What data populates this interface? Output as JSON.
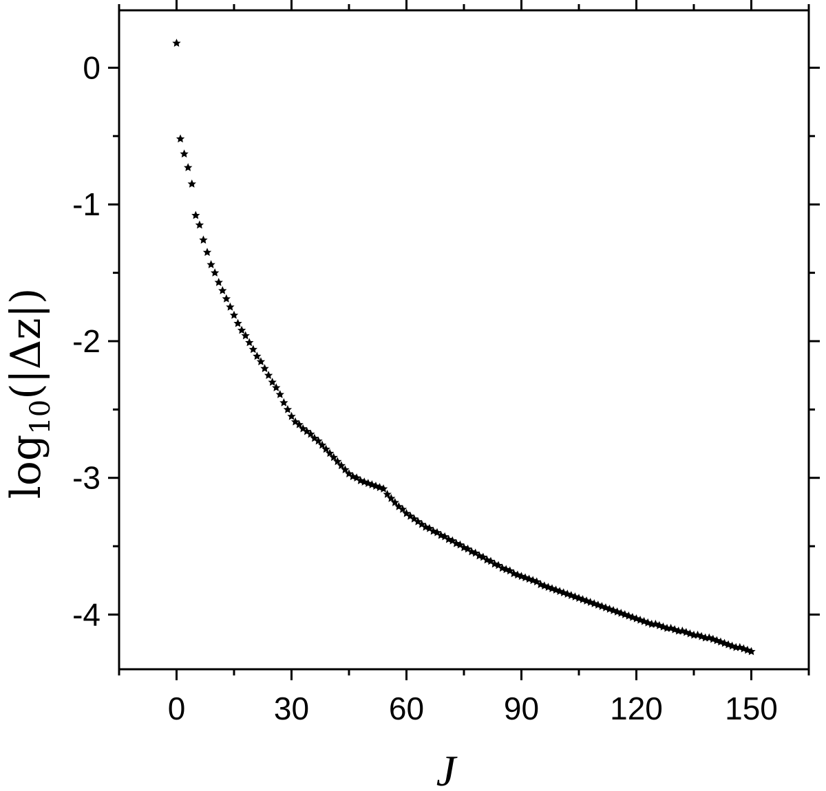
{
  "chart_data": {
    "type": "scatter",
    "xlabel": "J",
    "ylabel": {
      "prefix": "log",
      "subscript": "10",
      "suffix": "(|Δz|)"
    },
    "xlim": [
      -15,
      165
    ],
    "ylim": [
      -4.4,
      0.42
    ],
    "x_ticks": [
      0,
      30,
      60,
      90,
      120,
      150
    ],
    "x_tick_labels": [
      "0",
      "30",
      "60",
      "90",
      "120",
      "150"
    ],
    "y_ticks": [
      0,
      -1,
      -2,
      -3,
      -4
    ],
    "y_tick_labels": [
      "0",
      "-1",
      "-2",
      "-3",
      "-4"
    ],
    "x_minor_step": 15,
    "y_minor_step": 0.5,
    "grid": false,
    "marker": "star",
    "marker_color": "#000000",
    "series": [
      {
        "x": [
          0,
          1,
          2,
          3,
          4,
          5,
          6,
          7,
          8,
          9,
          10,
          11,
          12,
          13,
          14,
          15,
          16,
          17,
          18,
          19,
          20,
          21,
          22,
          23,
          24,
          25,
          26,
          27,
          28,
          29,
          30,
          31,
          32,
          33,
          34,
          35,
          36,
          37,
          38,
          39,
          40,
          41,
          42,
          43,
          44,
          45,
          46,
          47,
          48,
          49,
          50,
          51,
          52,
          53,
          54,
          55,
          56,
          57,
          58,
          59,
          60,
          61,
          62,
          63,
          64,
          65,
          66,
          67,
          68,
          69,
          70,
          71,
          72,
          73,
          74,
          75,
          76,
          77,
          78,
          79,
          80,
          81,
          82,
          83,
          84,
          85,
          86,
          87,
          88,
          89,
          90,
          91,
          92,
          93,
          94,
          95,
          96,
          97,
          98,
          99,
          100,
          101,
          102,
          103,
          104,
          105,
          106,
          107,
          108,
          109,
          110,
          111,
          112,
          113,
          114,
          115,
          116,
          117,
          118,
          119,
          120,
          121,
          122,
          123,
          124,
          125,
          126,
          127,
          128,
          129,
          130,
          131,
          132,
          133,
          134,
          135,
          136,
          137,
          138,
          139,
          140,
          141,
          142,
          143,
          144,
          145,
          146,
          147,
          148,
          149,
          150
        ],
        "y": [
          0.18,
          -0.52,
          -0.63,
          -0.73,
          -0.85,
          -1.08,
          -1.15,
          -1.26,
          -1.35,
          -1.44,
          -1.5,
          -1.57,
          -1.63,
          -1.69,
          -1.75,
          -1.81,
          -1.87,
          -1.92,
          -1.96,
          -2.01,
          -2.06,
          -2.11,
          -2.15,
          -2.2,
          -2.25,
          -2.3,
          -2.34,
          -2.39,
          -2.45,
          -2.5,
          -2.55,
          -2.59,
          -2.61,
          -2.64,
          -2.66,
          -2.68,
          -2.71,
          -2.73,
          -2.76,
          -2.79,
          -2.82,
          -2.85,
          -2.88,
          -2.91,
          -2.94,
          -2.97,
          -2.99,
          -3.0,
          -3.02,
          -3.03,
          -3.04,
          -3.05,
          -3.06,
          -3.07,
          -3.08,
          -3.12,
          -3.15,
          -3.18,
          -3.21,
          -3.23,
          -3.26,
          -3.28,
          -3.3,
          -3.32,
          -3.34,
          -3.36,
          -3.37,
          -3.39,
          -3.4,
          -3.42,
          -3.43,
          -3.45,
          -3.46,
          -3.48,
          -3.49,
          -3.51,
          -3.52,
          -3.54,
          -3.55,
          -3.57,
          -3.58,
          -3.6,
          -3.61,
          -3.63,
          -3.64,
          -3.66,
          -3.67,
          -3.68,
          -3.7,
          -3.71,
          -3.72,
          -3.73,
          -3.74,
          -3.75,
          -3.76,
          -3.78,
          -3.79,
          -3.8,
          -3.81,
          -3.82,
          -3.83,
          -3.84,
          -3.85,
          -3.86,
          -3.87,
          -3.88,
          -3.89,
          -3.9,
          -3.91,
          -3.92,
          -3.93,
          -3.94,
          -3.95,
          -3.96,
          -3.97,
          -3.98,
          -3.99,
          -4.0,
          -4.01,
          -4.02,
          -4.03,
          -4.04,
          -4.05,
          -4.06,
          -4.07,
          -4.07,
          -4.08,
          -4.09,
          -4.1,
          -4.1,
          -4.11,
          -4.12,
          -4.12,
          -4.13,
          -4.14,
          -4.15,
          -4.15,
          -4.16,
          -4.17,
          -4.17,
          -4.18,
          -4.19,
          -4.2,
          -4.21,
          -4.22,
          -4.23,
          -4.24,
          -4.24,
          -4.25,
          -4.26,
          -4.27
        ]
      }
    ]
  }
}
